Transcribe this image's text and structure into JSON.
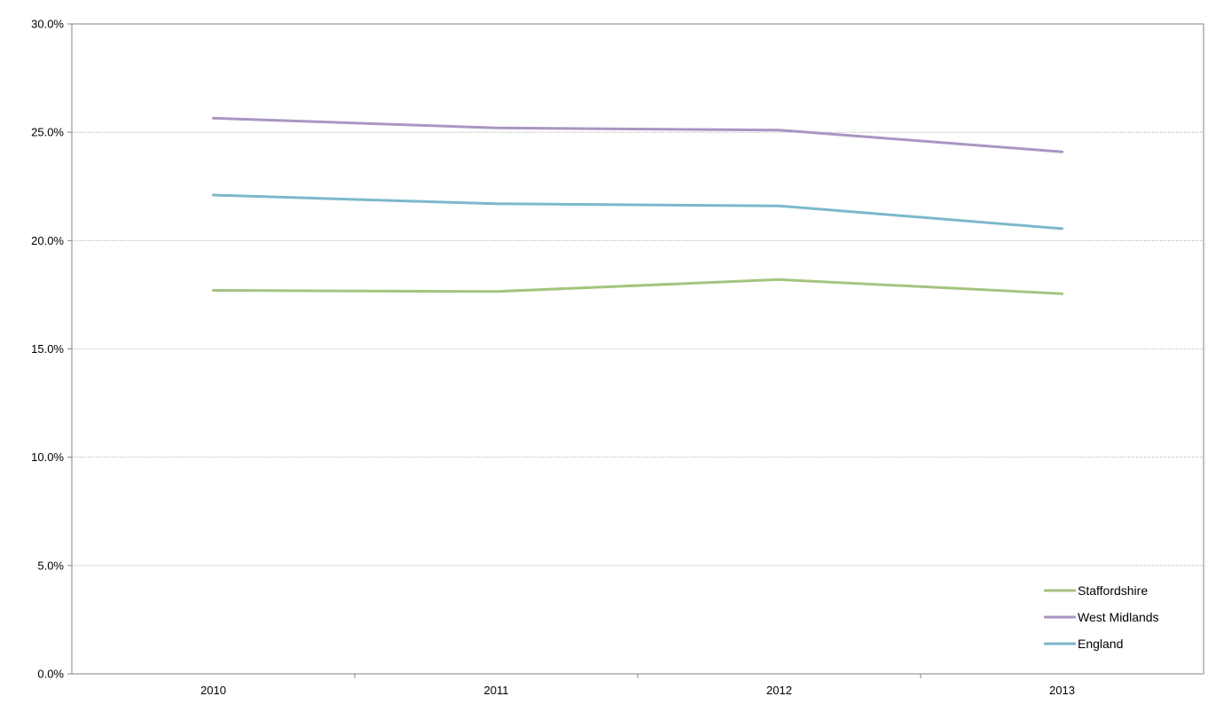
{
  "chart_data": {
    "type": "line",
    "categories": [
      "2010",
      "2011",
      "2012",
      "2013"
    ],
    "series": [
      {
        "name": "Staffordshire",
        "color": "#a4c47e",
        "values": [
          17.7,
          17.65,
          18.2,
          17.55
        ]
      },
      {
        "name": "West Midlands",
        "color": "#a996c2",
        "values": [
          25.65,
          25.2,
          25.1,
          24.1
        ]
      },
      {
        "name": "England",
        "color": "#7db7cc",
        "values": [
          22.1,
          21.7,
          21.6,
          20.55
        ]
      }
    ],
    "ylim": [
      0,
      30
    ],
    "y_ticks": [
      0,
      5,
      10,
      15,
      20,
      25,
      30
    ],
    "y_tick_labels": [
      "0.0%",
      "5.0%",
      "10.0%",
      "15.0%",
      "20.0%",
      "25.0%",
      "30.0%"
    ],
    "grid": "horizontal dotted",
    "legend_position": "bottom-right",
    "title": "",
    "xlabel": "",
    "ylabel": ""
  }
}
